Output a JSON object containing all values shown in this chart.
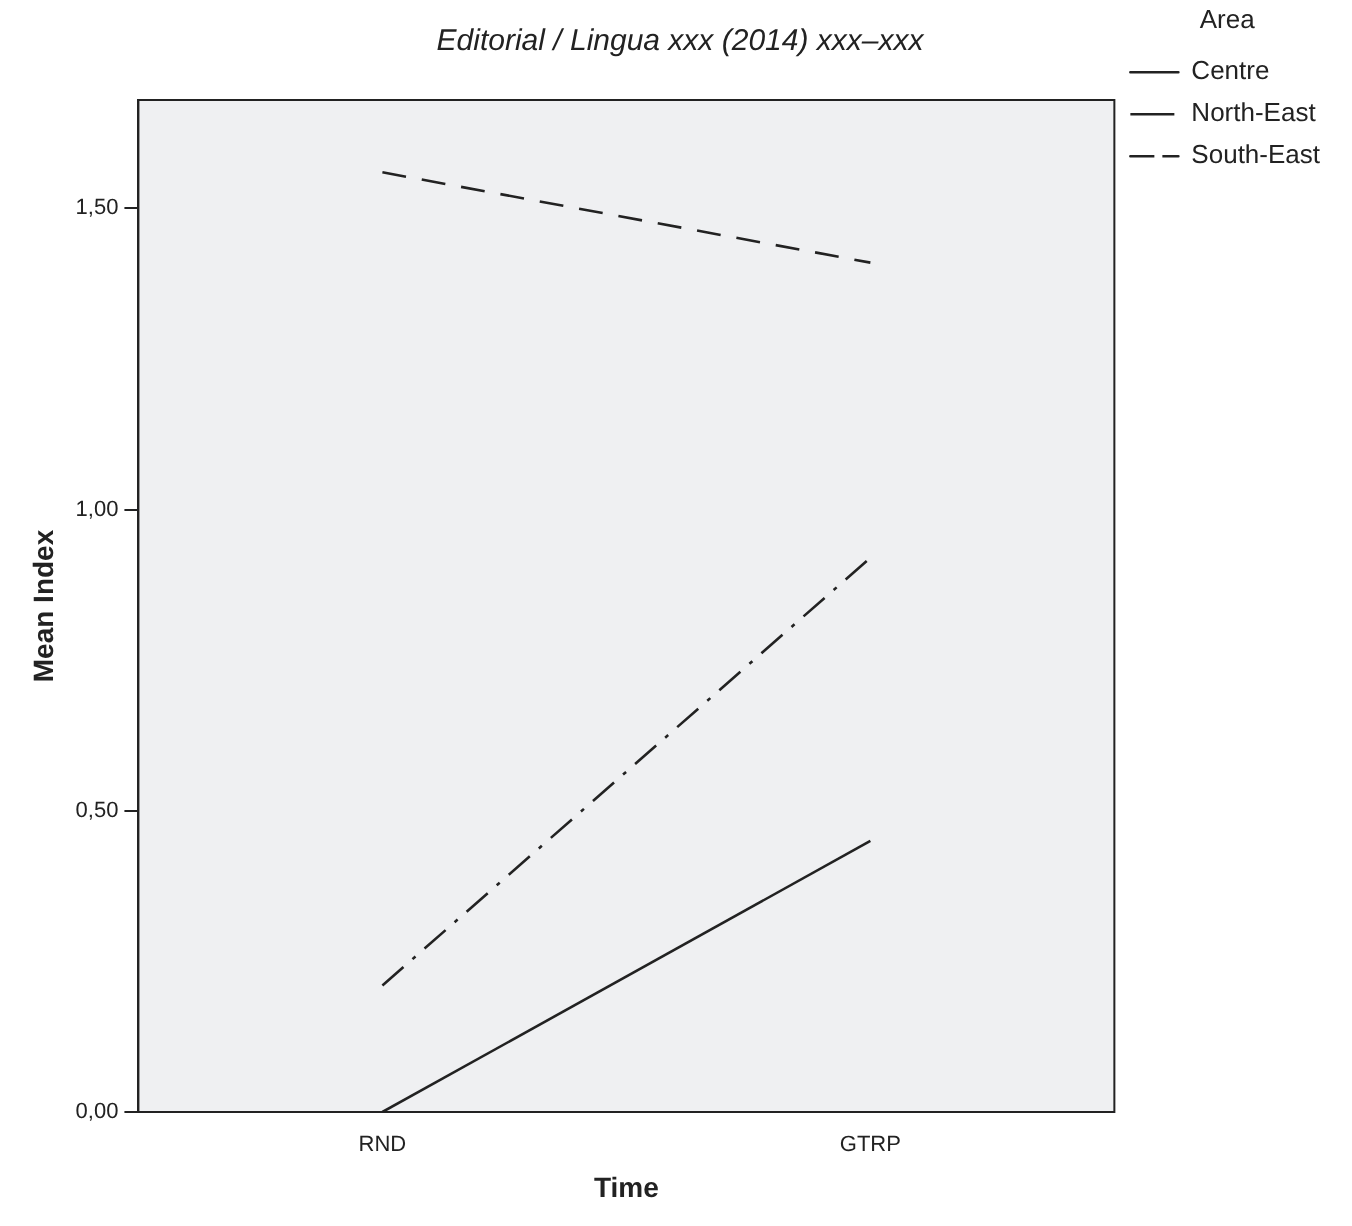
{
  "chart_data": {
    "type": "line",
    "title": "Editorial / Lingua xxx (2014) xxx–xxx",
    "xlabel": "Time",
    "ylabel": "Mean Index",
    "legend_title": "Area",
    "categories": [
      "RND",
      "GTRP"
    ],
    "series": [
      {
        "name": "Centre",
        "color": "#222222",
        "values": [
          0,
          0.45
        ],
        "line_style": "solid"
      },
      {
        "name": "North-East",
        "color": "#222222",
        "values": [
          0.21,
          0.92
        ],
        "line_style": "dashdot"
      },
      {
        "name": "South-East",
        "color": "#222222",
        "values": [
          1.56,
          1.41
        ],
        "line_style": "dashed"
      }
    ],
    "ylim": [
      0,
      1.68
    ],
    "yticks": [
      {
        "value": 0,
        "label": "0,00"
      },
      {
        "value": 0.5,
        "label": "0,50"
      },
      {
        "value": 1,
        "label": "1,00"
      },
      {
        "value": 1.5,
        "label": "1,50"
      }
    ],
    "grid": false,
    "legend": "top right",
    "marker": "none"
  }
}
